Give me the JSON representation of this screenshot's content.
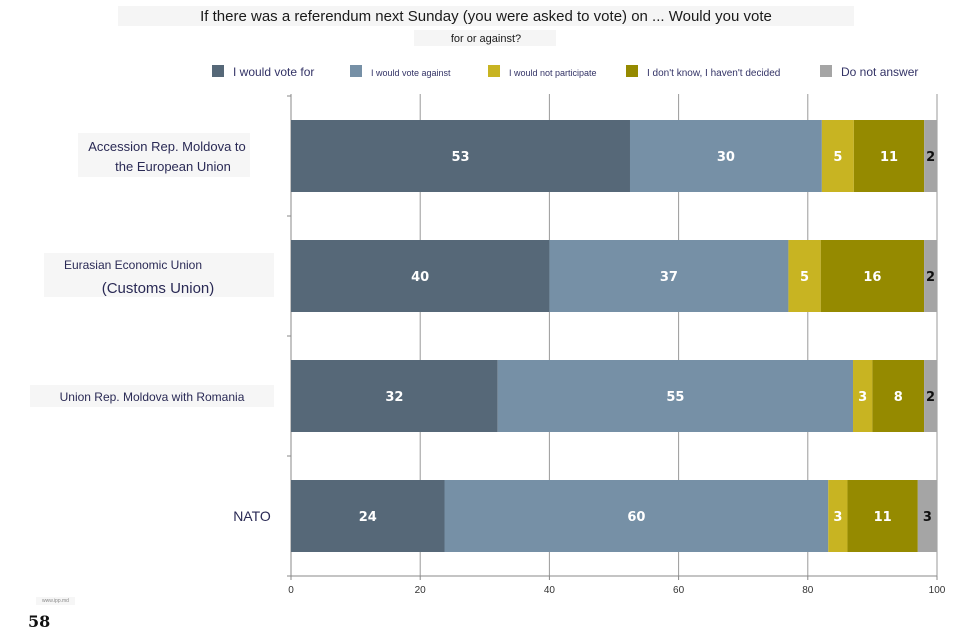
{
  "chart_data": {
    "type": "bar",
    "orientation": "horizontal",
    "stacked": true,
    "title": "If there was a referendum next Sunday (you were asked to vote) on ... Would you vote for or against?",
    "title_lines": [
      "If there was a referendum next Sunday (you were asked to vote) on ... Would you vote",
      "for or against?"
    ],
    "categories": [
      "Accession Rep. Moldova to the European Union",
      "Eurasian Economic Union (Customs Union)",
      "Union Rep. Moldova with Romania",
      "NATO"
    ],
    "category_label_lines": [
      [
        "Accession Rep. Moldova to",
        "the European Union"
      ],
      [
        "Eurasian Economic Union",
        "(Customs Union)"
      ],
      [
        "Union Rep. Moldova with Romania"
      ],
      [
        "NATO"
      ]
    ],
    "series": [
      {
        "name": "I would vote for",
        "color": "#566878",
        "label_color": "#ffffff",
        "values": [
          53,
          40,
          32,
          24
        ]
      },
      {
        "name": "I would vote against",
        "color": "#7690a6",
        "label_color": "#ffffff",
        "values": [
          30,
          37,
          55,
          60
        ]
      },
      {
        "name": "I would not participate",
        "color": "#c8b422",
        "label_color": "#ffffff",
        "values": [
          5,
          5,
          3,
          3
        ]
      },
      {
        "name": "I don't know, I haven't decided",
        "color": "#958a00",
        "label_color": "#ffffff",
        "values": [
          11,
          16,
          8,
          11
        ]
      },
      {
        "name": "Do not answer",
        "color": "#a5a5a5",
        "label_color": "#111111",
        "values": [
          2,
          2,
          2,
          3
        ]
      }
    ],
    "xlim": [
      0,
      100
    ],
    "xticks": [
      0,
      20,
      40,
      60,
      80,
      100
    ],
    "grid": true,
    "legend_position": "top"
  },
  "footer": {
    "page_number": "58",
    "source": "www.ipp.md"
  }
}
